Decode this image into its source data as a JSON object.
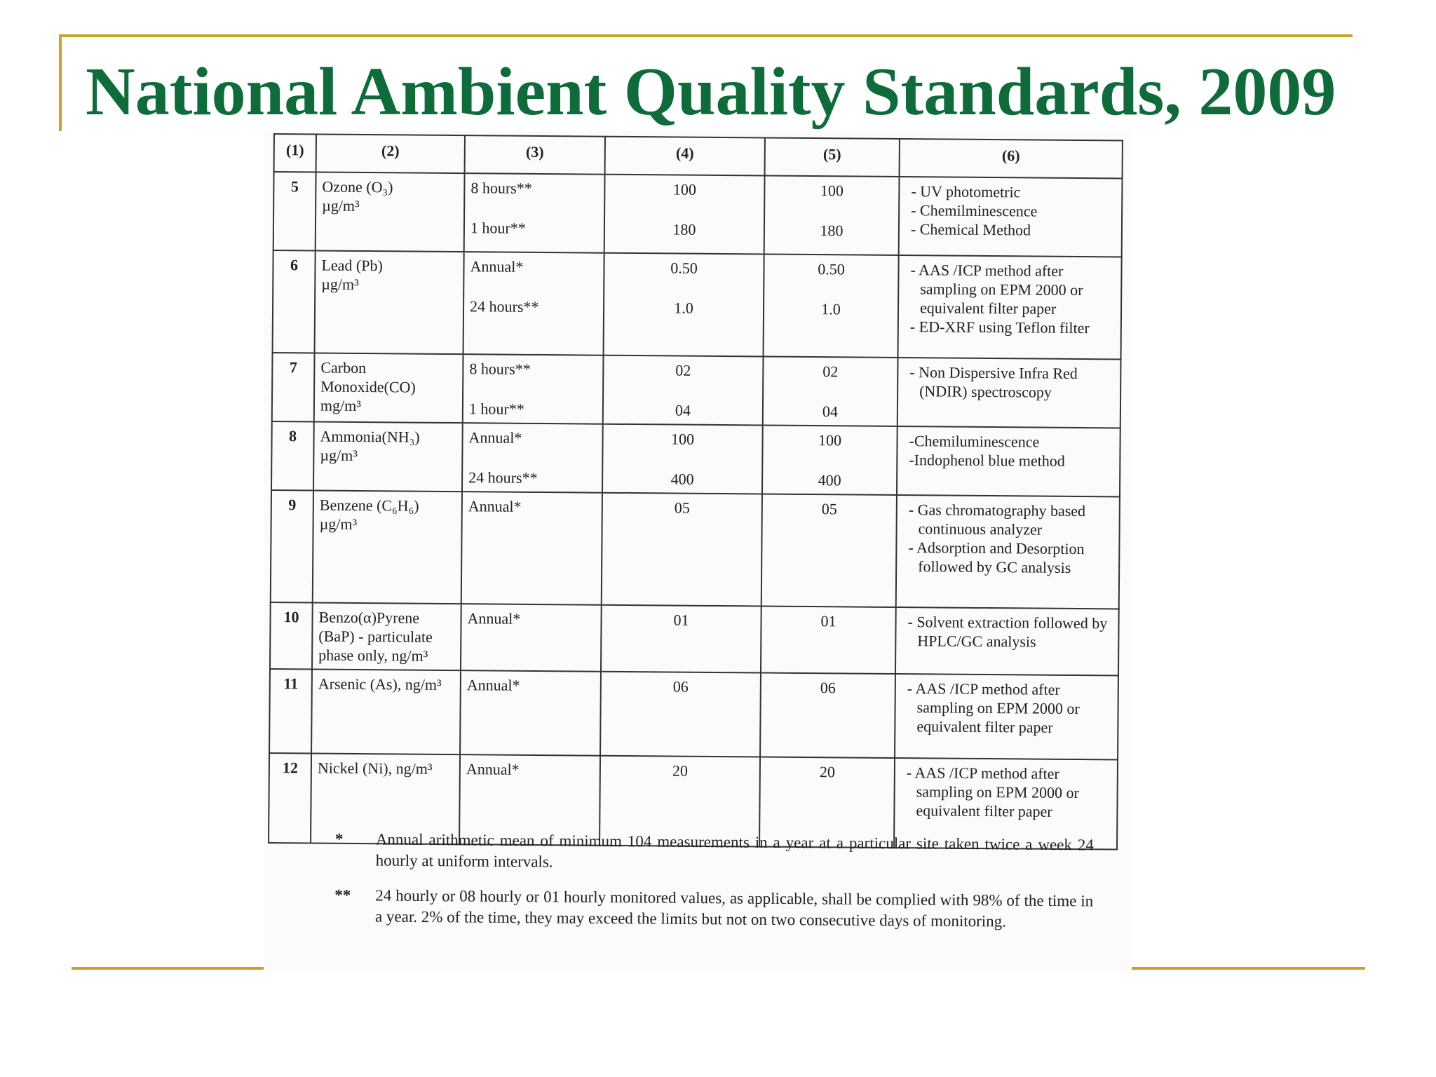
{
  "slide": {
    "title": "National Ambient Quality Standards, 2009"
  },
  "table": {
    "headers": [
      "(1)",
      "(2)",
      "(3)",
      "(4)",
      "(5)",
      "(6)"
    ],
    "rows": [
      {
        "sn": "5",
        "pollutant": "Ozone (O₃)",
        "unit": "µg/m³",
        "times": [
          "8 hours**",
          "1 hour**"
        ],
        "col4": [
          "100",
          "180"
        ],
        "col5": [
          "100",
          "180"
        ],
        "methods": [
          "- UV photometric",
          "- Chemilminescence",
          "- Chemical Method"
        ]
      },
      {
        "sn": "6",
        "pollutant": "Lead (Pb)",
        "unit": "µg/m³",
        "times": [
          "Annual*",
          "24 hours**"
        ],
        "col4": [
          "0.50",
          "1.0"
        ],
        "col5": [
          "0.50",
          "1.0"
        ],
        "methods": [
          "- AAS /ICP method after sampling on EPM 2000 or equivalent filter paper",
          "- ED-XRF using Teflon filter"
        ]
      },
      {
        "sn": "7",
        "pollutant": "Carbon Monoxide(CO)",
        "unit": "mg/m³",
        "times": [
          "8 hours**",
          "1 hour**"
        ],
        "col4": [
          "02",
          "04"
        ],
        "col5": [
          "02",
          "04"
        ],
        "methods": [
          "- Non Dispersive Infra Red (NDIR) spectroscopy"
        ]
      },
      {
        "sn": "8",
        "pollutant": "Ammonia(NH₃)",
        "unit": "µg/m³",
        "times": [
          "Annual*",
          "24 hours**"
        ],
        "col4": [
          "100",
          "400"
        ],
        "col5": [
          "100",
          "400"
        ],
        "methods": [
          "-Chemiluminescence",
          "-Indophenol blue method"
        ]
      },
      {
        "sn": "9",
        "pollutant": "Benzene (C₆H₆)",
        "unit": "µg/m³",
        "times": [
          "Annual*"
        ],
        "col4": [
          "05"
        ],
        "col5": [
          "05"
        ],
        "methods": [
          "- Gas chromatography based continuous analyzer",
          "- Adsorption and Desorption followed by GC analysis"
        ]
      },
      {
        "sn": "10",
        "pollutant": "Benzo(α)Pyrene (BaP) - particulate phase only, ng/m³",
        "unit": "",
        "times": [
          "Annual*"
        ],
        "col4": [
          "01"
        ],
        "col5": [
          "01"
        ],
        "methods": [
          "- Solvent extraction followed by HPLC/GC analysis"
        ]
      },
      {
        "sn": "11",
        "pollutant": "Arsenic (As), ng/m³",
        "unit": "",
        "times": [
          "Annual*"
        ],
        "col4": [
          "06"
        ],
        "col5": [
          "06"
        ],
        "methods": [
          "- AAS /ICP method after sampling on EPM 2000 or equivalent filter paper"
        ]
      },
      {
        "sn": "12",
        "pollutant": "Nickel (Ni), ng/m³",
        "unit": "",
        "times": [
          "Annual*"
        ],
        "col4": [
          "20"
        ],
        "col5": [
          "20"
        ],
        "methods": [
          "- AAS /ICP method after sampling on EPM 2000 or equivalent filter paper"
        ]
      }
    ]
  },
  "footnotes": [
    {
      "mark": "*",
      "text": "Annual arithmetic mean of minimum 104 measurements in a year at a particular site taken twice a week 24 hourly at uniform intervals."
    },
    {
      "mark": "**",
      "text": "24 hourly or 08 hourly or 01 hourly monitored values, as applicable, shall be complied with 98% of the time in a year. 2% of the time, they may exceed the limits but not on two consecutive days of monitoring."
    }
  ]
}
